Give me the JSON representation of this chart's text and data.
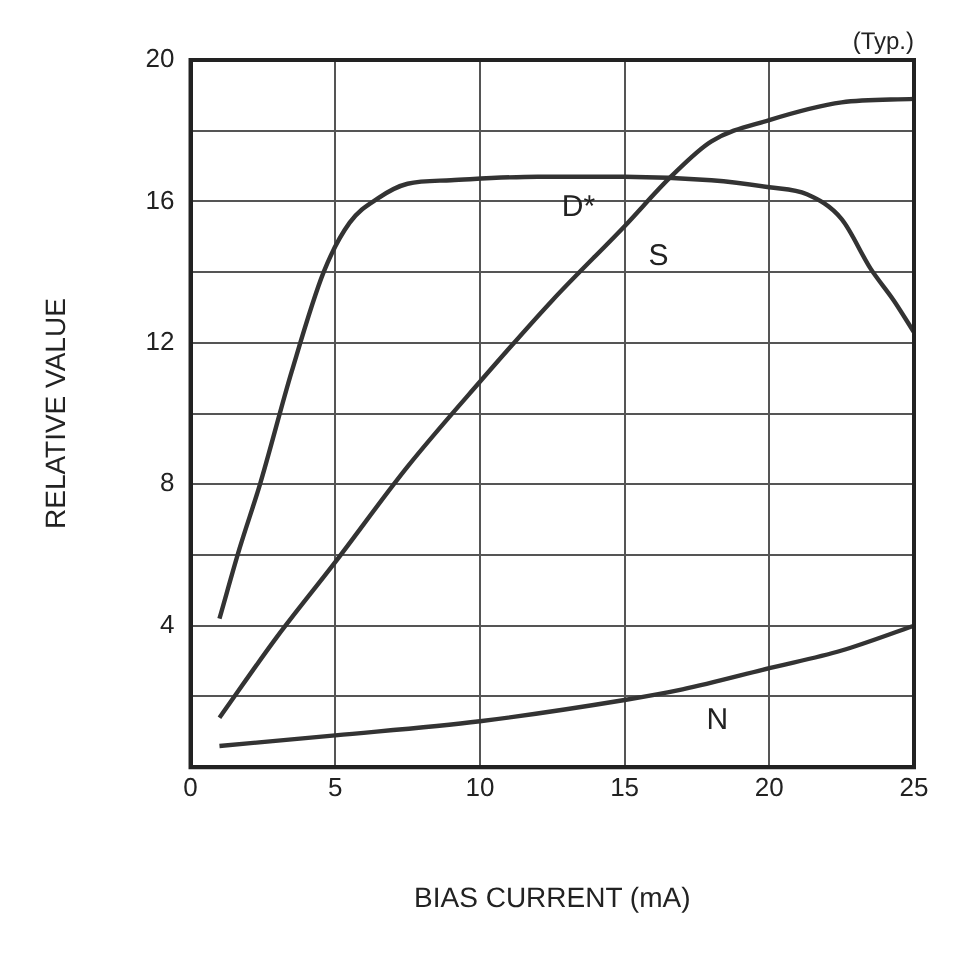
{
  "chart_data": {
    "type": "line",
    "xlabel": "BIAS CURRENT (mA)",
    "ylabel": "RELATIVE VALUE",
    "xlim": [
      0,
      25
    ],
    "xticks": [
      0,
      5,
      10,
      15,
      20,
      25
    ],
    "ylim": [
      0,
      20
    ],
    "yticks": [
      {
        "value": 0,
        "label": null
      },
      {
        "value": 2,
        "label": null
      },
      4,
      {
        "value": 6,
        "label": null
      },
      8,
      {
        "value": 10,
        "label": null
      },
      12,
      {
        "value": 14,
        "label": null
      },
      16,
      {
        "value": 18,
        "label": null
      },
      20
    ],
    "grid": true,
    "legend": false,
    "marker": "none",
    "line_style": "solid",
    "series": [
      {
        "name": "D*",
        "color": "#333333",
        "x": [
          1,
          1.7,
          2.4,
          3.5,
          4.6,
          5.5,
          6.5,
          7.5,
          9,
          12,
          15,
          18,
          20,
          21.3,
          22.5,
          23.5,
          24.3,
          25
        ],
        "values": [
          4.2,
          6.2,
          8.0,
          11.2,
          14.0,
          15.4,
          16.1,
          16.5,
          16.6,
          16.7,
          16.7,
          16.6,
          16.4,
          16.2,
          15.5,
          14.1,
          13.2,
          12.3
        ]
      },
      {
        "name": "S",
        "color": "#333333",
        "x": [
          1,
          3,
          5,
          7.5,
          10,
          12.5,
          15,
          16.6,
          18,
          20,
          22.5,
          25
        ],
        "values": [
          1.4,
          3.7,
          5.8,
          8.5,
          10.9,
          13.2,
          15.3,
          16.7,
          17.7,
          18.3,
          18.8,
          18.9
        ]
      },
      {
        "name": "N",
        "color": "#333333",
        "x": [
          1,
          5,
          10,
          15,
          17,
          20,
          22.5,
          25
        ],
        "values": [
          0.6,
          0.9,
          1.3,
          1.9,
          2.2,
          2.8,
          3.3,
          4.0
        ]
      }
    ],
    "annotations": [
      "(Typ.)"
    ]
  }
}
